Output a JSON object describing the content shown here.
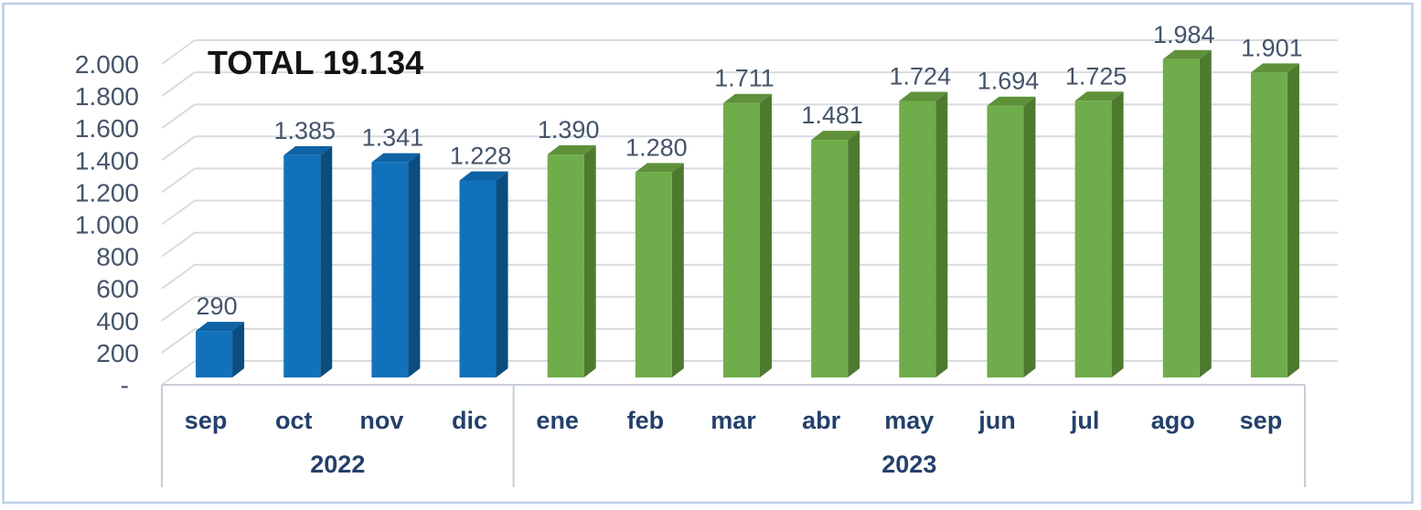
{
  "figure": {
    "background": "#FFFFFF",
    "border_color": "#BCCFE8"
  },
  "colors": {
    "tick_label": "#44546A",
    "data_label": "#44546A",
    "category_label": "#24406B",
    "title": "#141414",
    "gridline": "#D8DBE0",
    "axis_line": "#C7CDD6"
  },
  "chart_data": {
    "type": "bar",
    "style": "3d-column",
    "title": "TOTAL 19.134",
    "total": 19134,
    "categories": [
      "sep",
      "oct",
      "nov",
      "dic",
      "ene",
      "feb",
      "mar",
      "abr",
      "may",
      "jun",
      "jul",
      "ago",
      "sep"
    ],
    "values": [
      290,
      1385,
      1341,
      1228,
      1390,
      1280,
      1711,
      1481,
      1724,
      1694,
      1725,
      1984,
      1901
    ],
    "value_labels": [
      "290",
      "1.385",
      "1.341",
      "1.228",
      "1.390",
      "1.280",
      "1.711",
      "1.481",
      "1.724",
      "1.694",
      "1.725",
      "1.984",
      "1.901"
    ],
    "groups": [
      {
        "label": "2022",
        "start": 0,
        "end": 3,
        "color_front": "#1172BB",
        "color_top": "#0F62A4",
        "color_side": "#0A4D7E"
      },
      {
        "label": "2023",
        "start": 4,
        "end": 12,
        "color_front": "#6FAC4B",
        "color_top": "#5E9139",
        "color_side": "#4E7A30"
      }
    ],
    "y_axis": {
      "min": 0,
      "max": 2000,
      "step": 200,
      "tick_labels": [
        "-",
        "200",
        "400",
        "600",
        "800",
        "1.000",
        "1.200",
        "1.400",
        "1.600",
        "1.800",
        "2.000"
      ]
    },
    "xlabel": "",
    "ylabel": "",
    "grid": true,
    "legend": "none"
  }
}
